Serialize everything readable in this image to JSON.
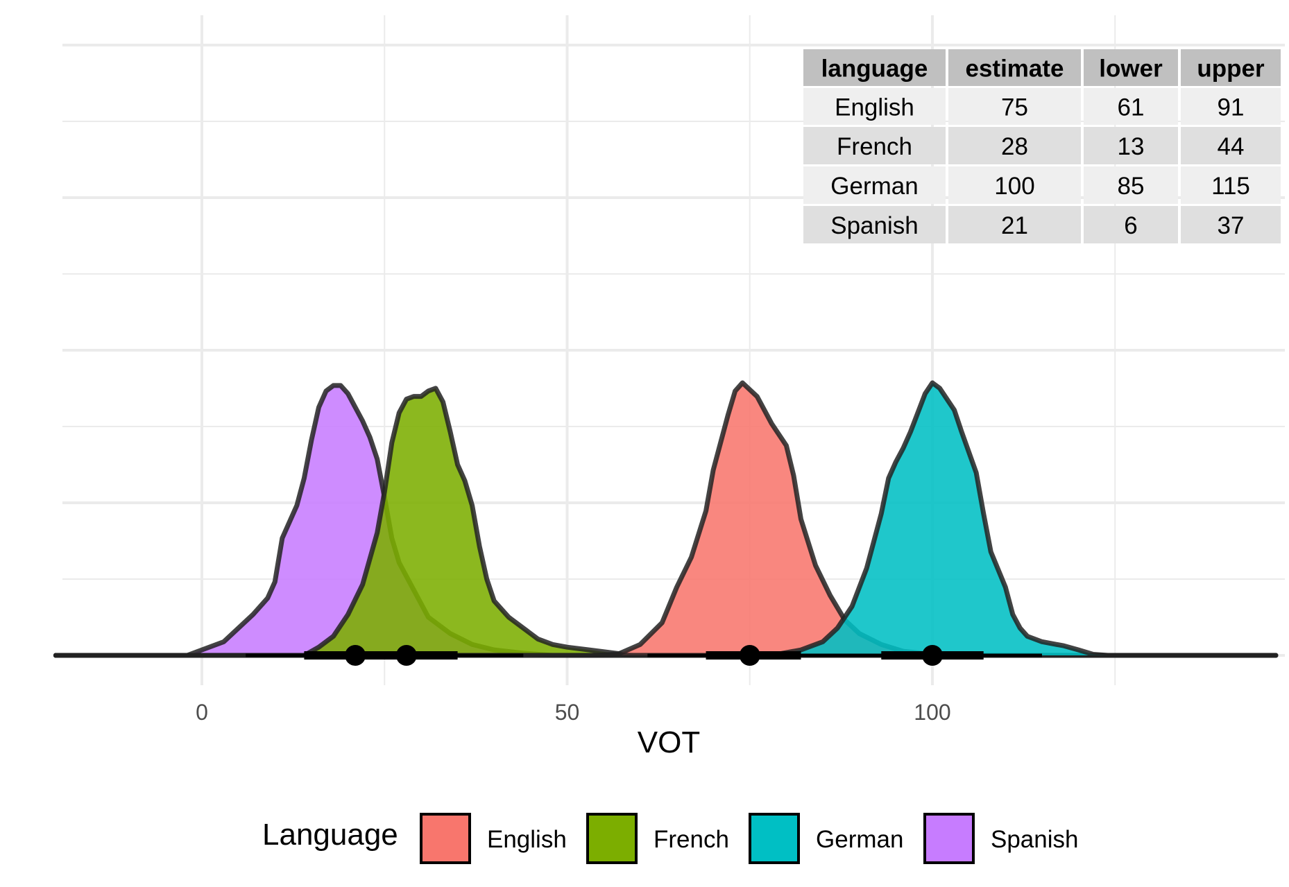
{
  "chart_data": {
    "type": "area",
    "title": "",
    "xlabel": "VOT",
    "ylabel": "",
    "xlim": [
      -20,
      147
    ],
    "x_ticks": [
      0,
      50,
      100
    ],
    "grid": true,
    "legend": {
      "title": "Language",
      "position": "bottom"
    },
    "series": [
      {
        "name": "English",
        "color": "#F8766D",
        "estimate": 75,
        "lower": 61,
        "upper": 91,
        "q_inner": [
          69,
          82
        ],
        "density": [
          [
            54,
            0
          ],
          [
            57,
            0.005
          ],
          [
            60,
            0.04
          ],
          [
            63,
            0.12
          ],
          [
            65,
            0.25
          ],
          [
            67,
            0.36
          ],
          [
            69,
            0.53
          ],
          [
            70,
            0.68
          ],
          [
            72,
            0.88
          ],
          [
            73,
            0.97
          ],
          [
            74,
            1.0
          ],
          [
            76,
            0.95
          ],
          [
            77,
            0.9
          ],
          [
            78,
            0.85
          ],
          [
            79,
            0.81
          ],
          [
            80,
            0.77
          ],
          [
            81,
            0.66
          ],
          [
            82,
            0.5
          ],
          [
            84,
            0.33
          ],
          [
            86,
            0.22
          ],
          [
            88,
            0.13
          ],
          [
            90,
            0.08
          ],
          [
            93,
            0.04
          ],
          [
            96,
            0.015
          ],
          [
            100,
            0.004
          ],
          [
            104,
            0
          ]
        ]
      },
      {
        "name": "French",
        "color": "#7CAE00",
        "estimate": 28,
        "lower": 13,
        "upper": 44,
        "q_inner": [
          22,
          35
        ],
        "density": [
          [
            14,
            0
          ],
          [
            16,
            0.03
          ],
          [
            18,
            0.07
          ],
          [
            20,
            0.15
          ],
          [
            22,
            0.26
          ],
          [
            24,
            0.45
          ],
          [
            25,
            0.6
          ],
          [
            26,
            0.78
          ],
          [
            27,
            0.89
          ],
          [
            28,
            0.94
          ],
          [
            29,
            0.95
          ],
          [
            30,
            0.95
          ],
          [
            31,
            0.97
          ],
          [
            32,
            0.98
          ],
          [
            33,
            0.93
          ],
          [
            34,
            0.82
          ],
          [
            35,
            0.7
          ],
          [
            36,
            0.64
          ],
          [
            37,
            0.55
          ],
          [
            38,
            0.4
          ],
          [
            39,
            0.28
          ],
          [
            40,
            0.2
          ],
          [
            42,
            0.14
          ],
          [
            44,
            0.1
          ],
          [
            46,
            0.06
          ],
          [
            48,
            0.04
          ],
          [
            50,
            0.03
          ],
          [
            53,
            0.02
          ],
          [
            56,
            0.01
          ],
          [
            59,
            0
          ]
        ]
      },
      {
        "name": "German",
        "color": "#00BFC4",
        "estimate": 100,
        "lower": 85,
        "upper": 115,
        "q_inner": [
          93,
          107
        ],
        "density": [
          [
            78,
            0
          ],
          [
            82,
            0.02
          ],
          [
            85,
            0.05
          ],
          [
            87,
            0.1
          ],
          [
            89,
            0.18
          ],
          [
            91,
            0.32
          ],
          [
            93,
            0.52
          ],
          [
            94,
            0.65
          ],
          [
            95,
            0.71
          ],
          [
            96,
            0.76
          ],
          [
            97,
            0.82
          ],
          [
            98,
            0.89
          ],
          [
            99,
            0.96
          ],
          [
            100,
            1.0
          ],
          [
            101,
            0.98
          ],
          [
            103,
            0.9
          ],
          [
            104,
            0.82
          ],
          [
            106,
            0.67
          ],
          [
            107,
            0.52
          ],
          [
            108,
            0.38
          ],
          [
            110,
            0.25
          ],
          [
            111,
            0.15
          ],
          [
            112,
            0.1
          ],
          [
            113,
            0.07
          ],
          [
            115,
            0.05
          ],
          [
            118,
            0.035
          ],
          [
            120,
            0.02
          ],
          [
            122,
            0.004
          ],
          [
            124,
            0
          ]
        ]
      },
      {
        "name": "Spanish",
        "color": "#C77CFF",
        "estimate": 21,
        "lower": 6,
        "upper": 37,
        "q_inner": [
          14,
          35
        ],
        "density": [
          [
            -2,
            0
          ],
          [
            0,
            0.02
          ],
          [
            3,
            0.05
          ],
          [
            5,
            0.1
          ],
          [
            7,
            0.15
          ],
          [
            9,
            0.21
          ],
          [
            10,
            0.27
          ],
          [
            11,
            0.43
          ],
          [
            13,
            0.55
          ],
          [
            14,
            0.65
          ],
          [
            15,
            0.79
          ],
          [
            16,
            0.91
          ],
          [
            17,
            0.97
          ],
          [
            18,
            0.99
          ],
          [
            19,
            0.99
          ],
          [
            20,
            0.96
          ],
          [
            21,
            0.91
          ],
          [
            22,
            0.86
          ],
          [
            23,
            0.8
          ],
          [
            24,
            0.72
          ],
          [
            25,
            0.58
          ],
          [
            26,
            0.43
          ],
          [
            27,
            0.34
          ],
          [
            29,
            0.24
          ],
          [
            31,
            0.14
          ],
          [
            34,
            0.08
          ],
          [
            37,
            0.04
          ],
          [
            40,
            0.02
          ],
          [
            44,
            0.008
          ],
          [
            48,
            0
          ]
        ]
      }
    ],
    "table": {
      "headers": [
        "language",
        "estimate",
        "lower",
        "upper"
      ],
      "rows": [
        [
          "English",
          "75",
          "61",
          "91"
        ],
        [
          "French",
          "28",
          "13",
          "44"
        ],
        [
          "German",
          "100",
          "85",
          "115"
        ],
        [
          "Spanish",
          "21",
          "6",
          "37"
        ]
      ]
    }
  }
}
